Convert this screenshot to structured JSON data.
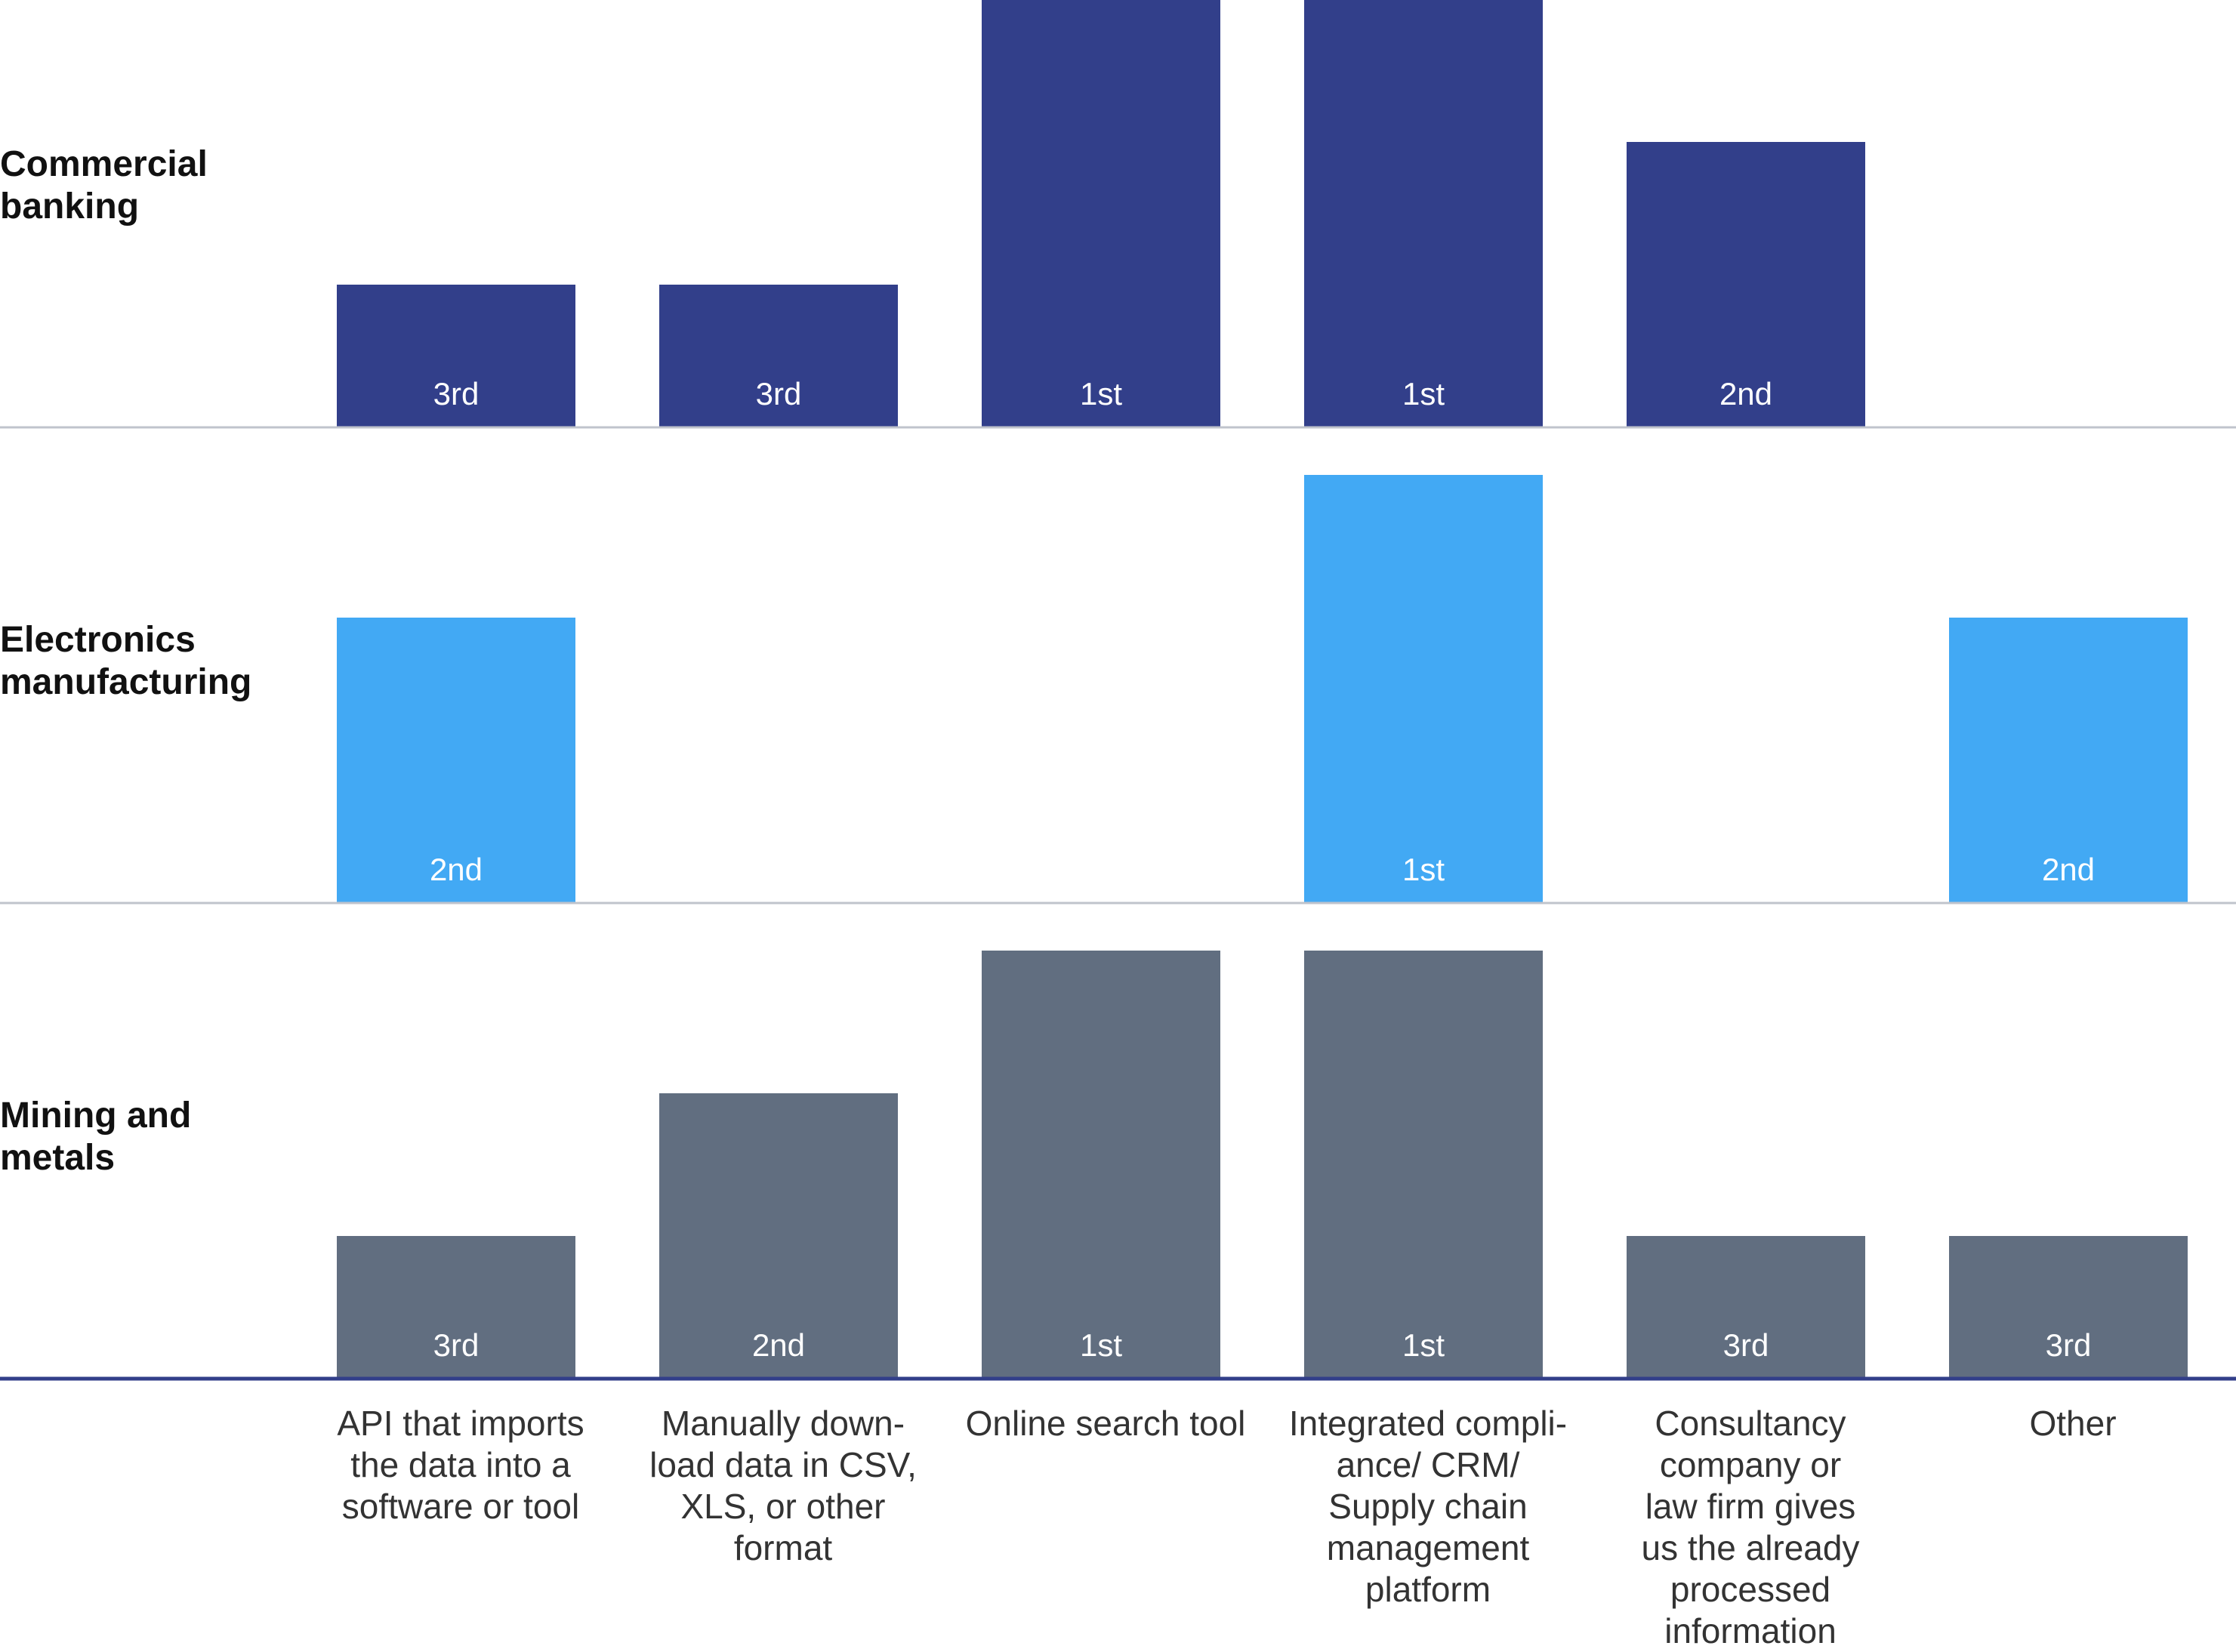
{
  "chart_data": {
    "type": "bar",
    "categories": [
      "API that imports\nthe data into a\nsoftware or tool",
      "Manually down-\nload data in CSV,\nXLS, or other\nformat",
      "Online search tool",
      "Integrated compli-\nance/ CRM/\nSupply chain\nmanagement\nplatform",
      "Consultancy\ncompany or\nlaw firm gives\nus the already\nprocessed\ninformation",
      "Other"
    ],
    "series": [
      {
        "name": "Commercial\nbanking",
        "color": "#323f8a",
        "values": [
          1,
          1,
          3,
          3,
          2,
          null
        ],
        "labels": [
          "3rd",
          "3rd",
          "1st",
          "1st",
          "2nd",
          ""
        ]
      },
      {
        "name": "Electronics\nmanufacturing",
        "color": "#42a9f4",
        "values": [
          2,
          null,
          null,
          3,
          null,
          2
        ],
        "labels": [
          "2nd",
          "",
          "",
          "1st",
          "",
          "2nd"
        ]
      },
      {
        "name": "Mining and\nmetals",
        "color": "#616e80",
        "values": [
          1,
          2,
          3,
          3,
          1,
          1
        ],
        "labels": [
          "3rd",
          "2nd",
          "1st",
          "1st",
          "3rd",
          "3rd"
        ]
      }
    ],
    "ylim": [
      0,
      3
    ],
    "legend": "row labels left",
    "baseline_color": "#323f8a",
    "divider_color": "#c0c4cc"
  }
}
